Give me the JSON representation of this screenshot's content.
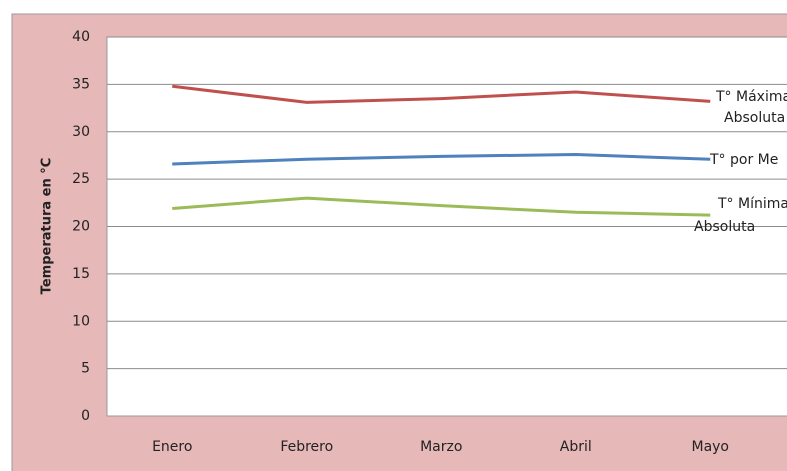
{
  "chart_data": {
    "type": "line",
    "y_label": "Temperatura en °C",
    "categories": [
      "Enero",
      "Febrero",
      "Marzo",
      "Abril",
      "Mayo"
    ],
    "series": [
      {
        "name": "T° Máxima Absoluta",
        "color": "#c0504d",
        "values": [
          34.8,
          33.1,
          33.5,
          34.2,
          33.2
        ]
      },
      {
        "name": "T°  por Me",
        "color": "#4f81bd",
        "values": [
          26.6,
          27.1,
          27.4,
          27.6,
          27.1
        ]
      },
      {
        "name": "T° Mínima Absoluta",
        "color": "#9bbb59",
        "values": [
          21.9,
          23.0,
          22.2,
          21.5,
          21.2
        ]
      }
    ],
    "ylim": [
      0,
      40
    ],
    "yticks": [
      0,
      5,
      10,
      15,
      20,
      25,
      30,
      35,
      40
    ],
    "grid": true
  }
}
